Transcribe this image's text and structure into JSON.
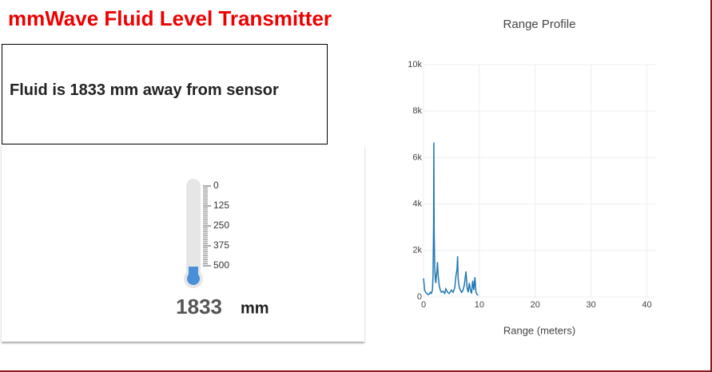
{
  "header": {
    "title": "mmWave Fluid Level Transmitter"
  },
  "status": {
    "text": "Fluid is 1833 mm away from sensor"
  },
  "gauge": {
    "ticks": [
      0,
      125,
      250,
      375,
      500
    ],
    "value": 1833,
    "unit": "mm"
  },
  "chart_data": {
    "type": "line",
    "title": "Range Profile",
    "x_label": "Range (meters)",
    "x": [
      0,
      0.2,
      0.4,
      0.6,
      0.8,
      1.0,
      1.2,
      1.4,
      1.6,
      1.7,
      1.8,
      1.85,
      1.9,
      2.0,
      2.1,
      2.2,
      2.3,
      2.4,
      2.5,
      2.6,
      2.8,
      3.0,
      3.2,
      3.5,
      3.8,
      4.0,
      4.3,
      4.6,
      5.0,
      5.3,
      5.6,
      5.8,
      6.0,
      6.1,
      6.2,
      6.4,
      6.6,
      6.8,
      7.0,
      7.3,
      7.6,
      7.8,
      8.0,
      8.2,
      8.4,
      8.6,
      8.8,
      9.0,
      9.2,
      9.4,
      9.6,
      9.8
    ],
    "values": [
      800,
      300,
      200,
      150,
      100,
      120,
      200,
      150,
      300,
      900,
      3000,
      6650,
      2900,
      1300,
      800,
      600,
      900,
      1100,
      1500,
      1000,
      500,
      300,
      200,
      250,
      150,
      350,
      200,
      150,
      300,
      200,
      400,
      900,
      1200,
      1750,
      800,
      400,
      300,
      200,
      250,
      500,
      1100,
      400,
      200,
      600,
      300,
      150,
      700,
      300,
      850,
      200,
      100,
      80
    ],
    "color": "#1f77b4",
    "xlim": [
      0,
      41.5
    ],
    "xticks": [
      0,
      10,
      20,
      30,
      40
    ],
    "ylim": [
      0,
      10000
    ],
    "yticks": [
      0,
      {
        "value": 2000,
        "label": "2k"
      },
      {
        "value": 4000,
        "label": "4k"
      },
      {
        "value": 6000,
        "label": "6k"
      },
      {
        "value": 8000,
        "label": "8k"
      },
      {
        "value": 10000,
        "label": "10k"
      }
    ],
    "grid": true
  }
}
